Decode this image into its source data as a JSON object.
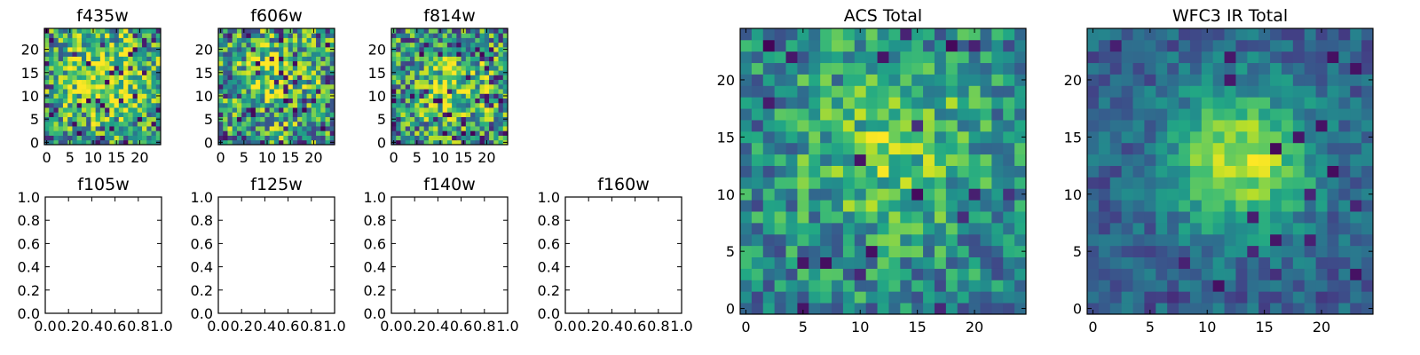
{
  "chart_data": [
    {
      "type": "heatmap",
      "title": "f435w",
      "cmap": "viridis",
      "grid_size": 25,
      "xlim": [
        -0.5,
        24.5
      ],
      "ylim": [
        -0.5,
        24.5
      ],
      "xticks": [
        "0",
        "5",
        "10",
        "15",
        "20"
      ],
      "yticks": [
        "0",
        "5",
        "10",
        "15",
        "20"
      ],
      "seed": 11,
      "amp": 0.35,
      "noise": 0.75,
      "center": [
        13,
        14
      ],
      "sigma": 6,
      "base": 0.55,
      "cold_frac": 0.07
    },
    {
      "type": "heatmap",
      "title": "f606w",
      "cmap": "viridis",
      "grid_size": 25,
      "xlim": [
        -0.5,
        24.5
      ],
      "ylim": [
        -0.5,
        24.5
      ],
      "xticks": [
        "0",
        "5",
        "10",
        "15",
        "20"
      ],
      "yticks": [
        "0",
        "5",
        "10",
        "15",
        "20"
      ],
      "seed": 23,
      "amp": 0.25,
      "noise": 0.8,
      "center": [
        12,
        13
      ],
      "sigma": 6,
      "base": 0.55,
      "cold_frac": 0.08
    },
    {
      "type": "heatmap",
      "title": "f814w",
      "cmap": "viridis",
      "grid_size": 25,
      "xlim": [
        -0.5,
        24.5
      ],
      "ylim": [
        -0.5,
        24.5
      ],
      "xticks": [
        "0",
        "5",
        "10",
        "15",
        "20"
      ],
      "yticks": [
        "0",
        "5",
        "10",
        "15",
        "20"
      ],
      "seed": 37,
      "amp": 0.3,
      "noise": 0.8,
      "center": [
        14,
        12
      ],
      "sigma": 6,
      "base": 0.5,
      "cold_frac": 0.08
    },
    {
      "type": "empty",
      "title": "f105w",
      "xlim": [
        0,
        1
      ],
      "ylim": [
        0,
        1
      ],
      "xticks": [
        "0.0",
        "0.2",
        "0.4",
        "0.6",
        "0.8",
        "1.0"
      ],
      "yticks": [
        "0.0",
        "0.2",
        "0.4",
        "0.6",
        "0.8",
        "1.0"
      ]
    },
    {
      "type": "empty",
      "title": "f125w",
      "xlim": [
        0,
        1
      ],
      "ylim": [
        0,
        1
      ],
      "xticks": [
        "0.0",
        "0.2",
        "0.4",
        "0.6",
        "0.8",
        "1.0"
      ],
      "yticks": [
        "0.0",
        "0.2",
        "0.4",
        "0.6",
        "0.8",
        "1.0"
      ]
    },
    {
      "type": "empty",
      "title": "f140w",
      "xlim": [
        0,
        1
      ],
      "ylim": [
        0,
        1
      ],
      "xticks": [
        "0.0",
        "0.2",
        "0.4",
        "0.6",
        "0.8",
        "1.0"
      ],
      "yticks": [
        "0.0",
        "0.2",
        "0.4",
        "0.6",
        "0.8",
        "1.0"
      ]
    },
    {
      "type": "empty",
      "title": "f160w",
      "xlim": [
        0,
        1
      ],
      "ylim": [
        0,
        1
      ],
      "xticks": [
        "0.0",
        "0.2",
        "0.4",
        "0.6",
        "0.8",
        "1.0"
      ],
      "yticks": [
        "0.0",
        "0.2",
        "0.4",
        "0.6",
        "0.8",
        "1.0"
      ]
    },
    {
      "type": "heatmap",
      "title": "ACS Total",
      "cmap": "viridis",
      "grid_size": 25,
      "xlim": [
        -0.5,
        24.5
      ],
      "ylim": [
        -0.5,
        24.5
      ],
      "xticks": [
        "0",
        "5",
        "10",
        "15",
        "20"
      ],
      "yticks": [
        "0",
        "5",
        "10",
        "15",
        "20"
      ],
      "seed": 53,
      "amp": 0.3,
      "noise": 0.55,
      "center": [
        13,
        14
      ],
      "sigma": 6,
      "base": 0.45,
      "cold_frac": 0.04
    },
    {
      "type": "heatmap",
      "title": "WFC3 IR Total",
      "cmap": "viridis",
      "grid_size": 25,
      "xlim": [
        -0.5,
        24.5
      ],
      "ylim": [
        -0.5,
        24.5
      ],
      "xticks": [
        "0",
        "5",
        "10",
        "15",
        "20"
      ],
      "yticks": [
        "0",
        "5",
        "10",
        "15",
        "20"
      ],
      "seed": 71,
      "amp": 0.6,
      "noise": 0.3,
      "center": [
        13,
        13
      ],
      "sigma": 4.5,
      "base": 0.3,
      "cold_frac": 0.03
    }
  ]
}
